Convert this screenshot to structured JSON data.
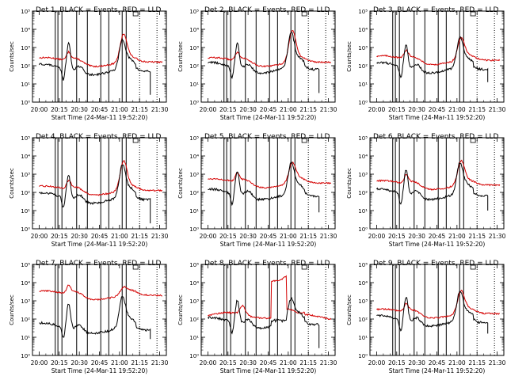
{
  "colors": {
    "events": "#000000",
    "lld": "#d40000",
    "axes": "#000000",
    "background": "#ffffff"
  },
  "chart_data": {
    "type": "line",
    "layout": "3x3 grid",
    "panels": [
      {
        "title": "Det 1, BLACK = Events, RED = LLD",
        "ylabel": "Counts/sec",
        "xlabel": "Start Time (24-Mar-11 19:52:20)",
        "lld_base": 2.2,
        "lld_peak": 3.6,
        "ev_base": 1.9,
        "ev_peak": 3.3,
        "ev_drop": 0.4,
        "bump": 1.5,
        "plateau": false
      },
      {
        "title": "Det 2, BLACK = Events, RED = LLD",
        "ylabel": "Counts/sec",
        "xlabel": "Start Time (24-Mar-11 19:52:20)",
        "lld_base": 2.2,
        "lld_peak": 3.8,
        "ev_base": 2.0,
        "ev_peak": 3.7,
        "ev_drop": 0.5,
        "bump": 1.4,
        "plateau": false
      },
      {
        "title": "Det 3, BLACK = Events, RED = LLD",
        "ylabel": "Counts/sec",
        "xlabel": "Start Time (24-Mar-11 19:52:20)",
        "lld_base": 2.3,
        "lld_peak": 3.4,
        "ev_base": 2.0,
        "ev_peak": 3.4,
        "ev_drop": 1.1,
        "bump": 1.3,
        "plateau": false
      },
      {
        "title": "Det 4, BLACK = Events, RED = LLD",
        "ylabel": "Counts/sec",
        "xlabel": "Start Time (24-Mar-11 19:52:20)",
        "lld_base": 2.1,
        "lld_peak": 3.6,
        "ev_base": 1.8,
        "ev_peak": 3.4,
        "ev_drop": 0.3,
        "bump": 1.3,
        "plateau": false
      },
      {
        "title": "Det 5, BLACK = Events, RED = LLD",
        "ylabel": "Counts/sec",
        "xlabel": "Start Time (24-Mar-11 19:52:20)",
        "lld_base": 2.5,
        "lld_peak": 3.5,
        "ev_base": 2.0,
        "ev_peak": 3.5,
        "ev_drop": 0.9,
        "bump": 1.3,
        "plateau": false
      },
      {
        "title": "Det 6, BLACK = Events, RED = LLD",
        "ylabel": "Counts/sec",
        "xlabel": "Start Time (24-Mar-11 19:52:20)",
        "lld_base": 2.4,
        "lld_peak": 3.6,
        "ev_base": 2.0,
        "ev_peak": 3.5,
        "ev_drop": 1.0,
        "bump": 1.4,
        "plateau": false
      },
      {
        "title": "Det 7, BLACK = Events, RED = LLD",
        "ylabel": "Counts/sec",
        "xlabel": "Start Time (24-Mar-11 19:52:20)",
        "lld_base": 3.3,
        "lld_peak": 3.6,
        "ev_base": 1.6,
        "ev_peak": 3.1,
        "ev_drop": 0.9,
        "bump": 1.4,
        "plateau": false
      },
      {
        "title": "Det 8, BLACK = Events, RED = LLD",
        "ylabel": "Counts/sec",
        "xlabel": "Start Time (24-Mar-11 19:52:20)",
        "lld_base": 2.2,
        "lld_peak": 3.3,
        "ev_base": 1.9,
        "ev_peak": 3.0,
        "ev_drop": 0.4,
        "bump": 1.3,
        "plateau": true
      },
      {
        "title": "Det 9, BLACK = Events, RED = LLD",
        "ylabel": "Counts/sec",
        "xlabel": "Start Time (24-Mar-11 19:52:20)",
        "lld_base": 2.3,
        "lld_peak": 3.4,
        "ev_base": 2.0,
        "ev_peak": 3.4,
        "ev_drop": 1.2,
        "bump": 1.4,
        "plateau": false
      }
    ],
    "x_range_minutes": [
      -5,
      95
    ],
    "x_ticks": [
      "20:00",
      "20:15",
      "20:30",
      "20:45",
      "21:00",
      "21:15",
      "21:30"
    ],
    "y_log_range": [
      0,
      5
    ],
    "y_ticks": [
      "10⁰",
      "10¹",
      "10²",
      "10³",
      "10⁴",
      "10⁵"
    ],
    "solid_vertical_lines_minutes": [
      12,
      14,
      17,
      28,
      36,
      46,
      52,
      62,
      65
    ],
    "dotted_vertical_lines_minutes": [
      75,
      88
    ],
    "series": [
      {
        "name": "Events",
        "color": "black"
      },
      {
        "name": "LLD",
        "color": "red"
      }
    ]
  }
}
